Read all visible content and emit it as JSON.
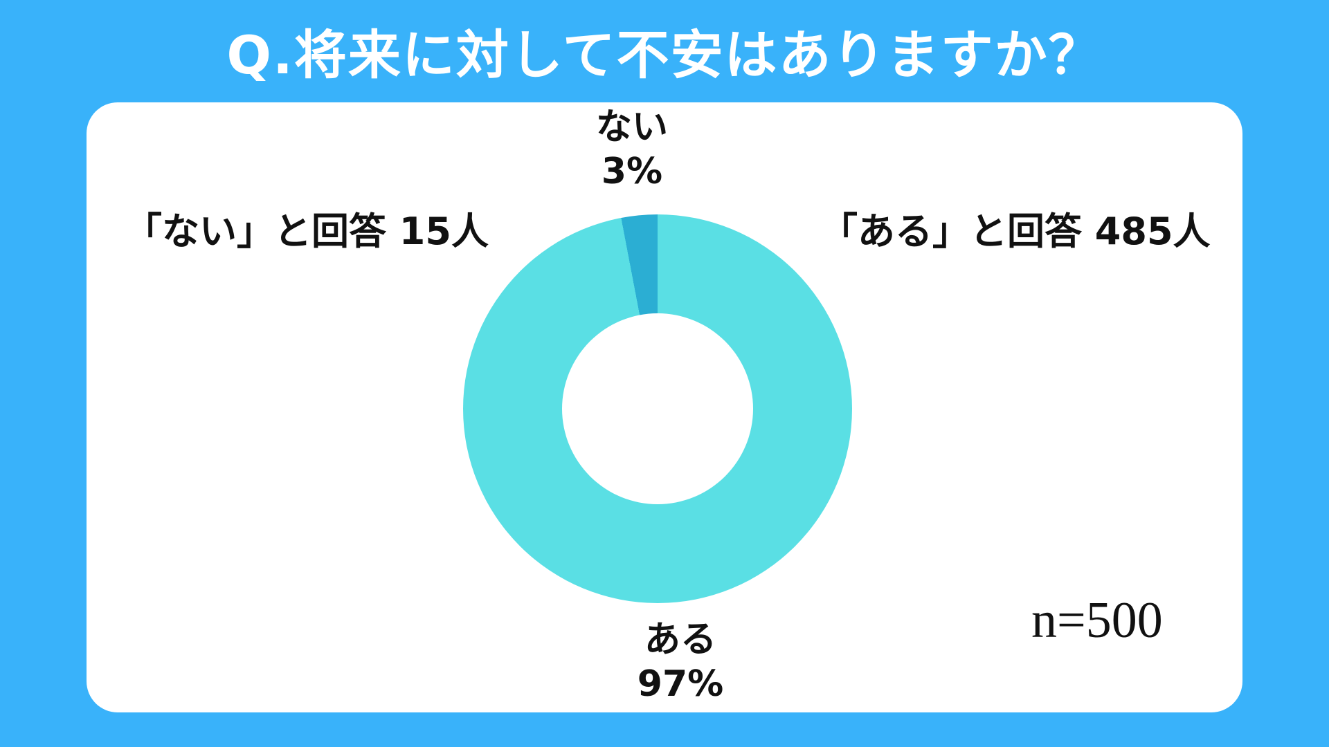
{
  "page": {
    "background_color": "#39B2FA",
    "card_color": "#ffffff"
  },
  "title": "Q.将来に対して不安はありますか？",
  "chart_data": {
    "type": "pie",
    "subtype": "donut",
    "title": "Q.将来に対して不安はありますか？",
    "categories": [
      "ある",
      "ない"
    ],
    "values": [
      97,
      3
    ],
    "unit": "%",
    "counts": [
      485,
      15
    ],
    "sample_size": 500,
    "colors": [
      "#5ADFE4",
      "#2BAED3"
    ],
    "inner_radius_ratio": 0.49,
    "start_angle_deg": 0,
    "direction": "clockwise",
    "legend": "none",
    "callouts": {
      "top": {
        "line1": "ない",
        "line2": "3%"
      },
      "bottom": {
        "line1": "ある",
        "line2": "97%"
      },
      "left": "「ない」と回答 15人",
      "right": "「ある」と回答 485人",
      "sample_label": "n=500"
    }
  }
}
